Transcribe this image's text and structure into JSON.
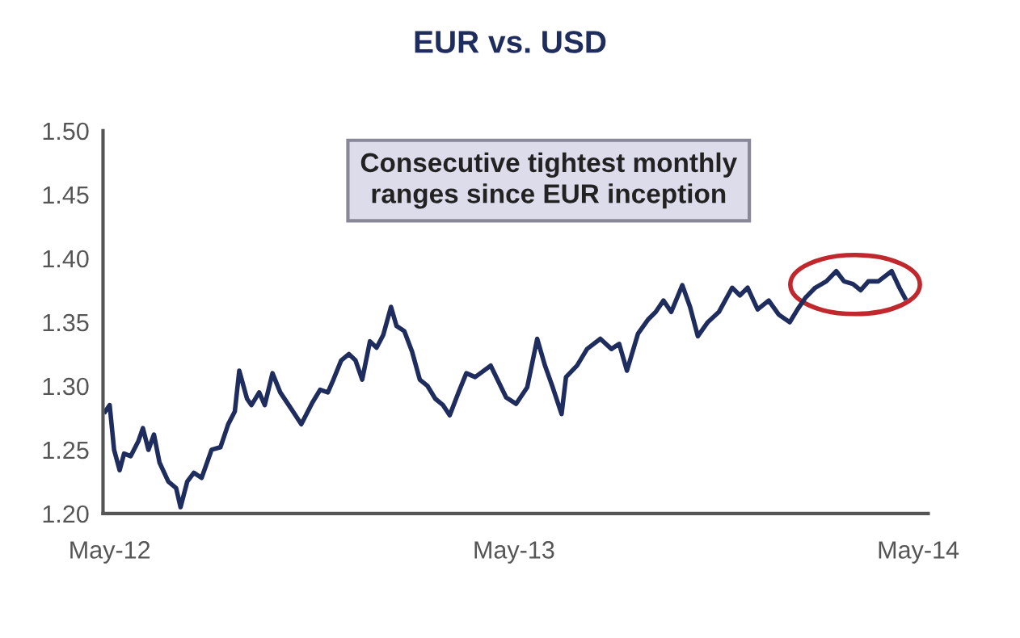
{
  "chart_data": {
    "type": "line",
    "title": "EUR vs. USD",
    "annotations": [
      "Consecutive tightest monthly\nranges since EUR inception"
    ],
    "x": [
      "2012-04-27",
      "2012-05-01",
      "2012-05-05",
      "2012-05-10",
      "2012-05-14",
      "2012-05-20",
      "2012-05-27",
      "2012-05-31",
      "2012-06-05",
      "2012-06-10",
      "2012-06-15",
      "2012-06-23",
      "2012-06-30",
      "2012-07-04",
      "2012-07-10",
      "2012-07-16",
      "2012-07-23",
      "2012-08-01",
      "2012-08-09",
      "2012-08-16",
      "2012-08-22",
      "2012-08-26",
      "2012-09-02",
      "2012-09-06",
      "2012-09-13",
      "2012-09-18",
      "2012-09-25",
      "2012-10-02",
      "2012-10-12",
      "2012-10-21",
      "2012-10-31",
      "2012-11-07",
      "2012-11-14",
      "2012-11-19",
      "2012-11-26",
      "2012-12-03",
      "2012-12-09",
      "2012-12-15",
      "2012-12-22",
      "2012-12-28",
      "2013-01-03",
      "2013-01-10",
      "2013-01-15",
      "2013-01-22",
      "2013-01-29",
      "2013-02-05",
      "2013-02-12",
      "2013-02-19",
      "2013-02-26",
      "2013-03-04",
      "2013-03-12",
      "2013-03-19",
      "2013-03-27",
      "2013-04-10",
      "2013-04-24",
      "2013-05-03",
      "2013-05-13",
      "2013-05-22",
      "2013-05-29",
      "2013-06-05",
      "2013-06-13",
      "2013-06-17",
      "2013-06-27",
      "2013-07-06",
      "2013-07-18",
      "2013-07-28",
      "2013-08-04",
      "2013-08-11",
      "2013-08-21",
      "2013-08-30",
      "2013-09-06",
      "2013-09-13",
      "2013-09-20",
      "2013-09-30",
      "2013-10-07",
      "2013-10-14",
      "2013-10-23",
      "2013-11-02",
      "2013-11-14",
      "2013-11-21",
      "2013-11-28",
      "2013-12-07",
      "2013-12-17",
      "2013-12-26",
      "2014-01-05",
      "2014-01-12",
      "2014-01-19",
      "2014-01-28",
      "2014-02-07",
      "2014-02-16",
      "2014-02-23",
      "2014-03-03",
      "2014-03-10",
      "2014-03-17",
      "2014-03-26",
      "2014-04-07",
      "2014-04-14",
      "2014-04-19"
    ],
    "series": [
      {
        "color": "#1f2d5e",
        "values": [
          1.28,
          1.285,
          1.25,
          1.234,
          1.247,
          1.245,
          1.257,
          1.267,
          1.25,
          1.262,
          1.24,
          1.225,
          1.22,
          1.205,
          1.225,
          1.232,
          1.228,
          1.25,
          1.252,
          1.27,
          1.28,
          1.312,
          1.29,
          1.285,
          1.295,
          1.285,
          1.31,
          1.295,
          1.282,
          1.27,
          1.287,
          1.297,
          1.295,
          1.305,
          1.32,
          1.325,
          1.32,
          1.305,
          1.335,
          1.33,
          1.34,
          1.362,
          1.347,
          1.343,
          1.327,
          1.305,
          1.3,
          1.29,
          1.285,
          1.277,
          1.295,
          1.31,
          1.307,
          1.316,
          1.291,
          1.286,
          1.299,
          1.337,
          1.316,
          1.299,
          1.278,
          1.307,
          1.316,
          1.329,
          1.337,
          1.329,
          1.333,
          1.312,
          1.341,
          1.352,
          1.358,
          1.367,
          1.358,
          1.379,
          1.362,
          1.339,
          1.35,
          1.358,
          1.377,
          1.371,
          1.377,
          1.36,
          1.367,
          1.356,
          1.35,
          1.36,
          1.369,
          1.377,
          1.382,
          1.39,
          1.382,
          1.38,
          1.375,
          1.382,
          1.382,
          1.39,
          1.377,
          1.369
        ]
      }
    ],
    "xlim": [
      "2012-04-25",
      "2014-05-10"
    ],
    "xticks": [
      {
        "value": "2012-05-01",
        "label": "May-12"
      },
      {
        "value": "2013-05-01",
        "label": "May-13"
      },
      {
        "value": "2014-05-01",
        "label": "May-14"
      }
    ],
    "ylim": [
      1.2,
      1.5
    ],
    "yticks": [
      {
        "value": 1.2,
        "label": "1.20"
      },
      {
        "value": 1.25,
        "label": "1.25"
      },
      {
        "value": 1.3,
        "label": "1.30"
      },
      {
        "value": 1.35,
        "label": "1.35"
      },
      {
        "value": 1.4,
        "label": "1.40"
      },
      {
        "value": 1.45,
        "label": "1.45"
      },
      {
        "value": 1.5,
        "label": "1.50"
      }
    ],
    "grid": false,
    "legend": false
  }
}
